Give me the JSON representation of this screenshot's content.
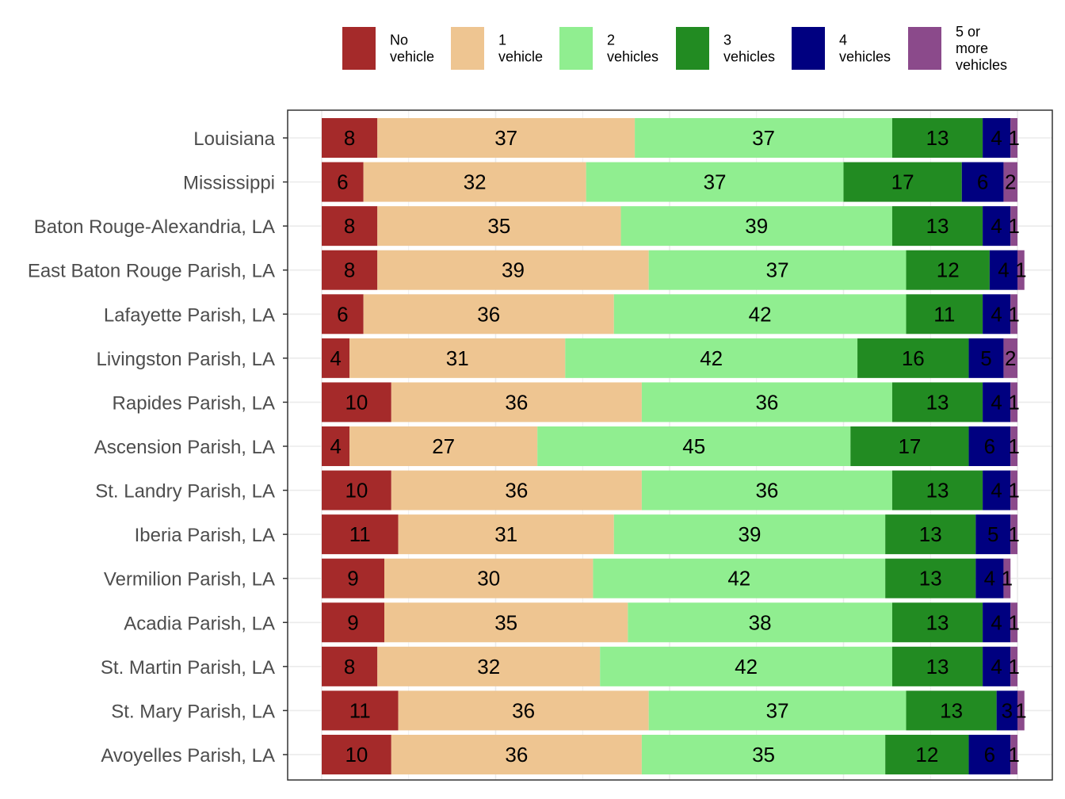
{
  "chart_data": {
    "type": "bar",
    "orientation": "horizontal",
    "stacked": true,
    "title": "",
    "xlabel": "",
    "ylabel": "",
    "xlim": [
      0,
      100
    ],
    "grid": true,
    "legend_position": "top-right",
    "categories": [
      "Louisiana",
      "Mississippi",
      "Baton Rouge-Alexandria, LA",
      "East Baton Rouge Parish, LA",
      "Lafayette Parish, LA",
      "Livingston Parish, LA",
      "Rapides Parish, LA",
      "Ascension Parish, LA",
      "St. Landry Parish, LA",
      "Iberia Parish, LA",
      "Vermilion Parish, LA",
      "Acadia Parish, LA",
      "St. Martin Parish, LA",
      "St. Mary Parish, LA",
      "Avoyelles Parish, LA"
    ],
    "series": [
      {
        "name": "No vehicle",
        "name_lines": [
          "No",
          "vehicle"
        ],
        "color": "#A52A2A",
        "values": [
          8,
          6,
          8,
          8,
          6,
          4,
          10,
          4,
          10,
          11,
          9,
          9,
          8,
          11,
          10
        ]
      },
      {
        "name": "1 vehicle",
        "name_lines": [
          "1",
          "vehicle"
        ],
        "color": "#EEC591",
        "values": [
          37,
          32,
          35,
          39,
          36,
          31,
          36,
          27,
          36,
          31,
          30,
          35,
          32,
          36,
          36
        ]
      },
      {
        "name": "2 vehicles",
        "name_lines": [
          "2",
          "vehicles"
        ],
        "color": "#90EE90",
        "values": [
          37,
          37,
          39,
          37,
          42,
          42,
          36,
          45,
          36,
          39,
          42,
          38,
          42,
          37,
          35
        ]
      },
      {
        "name": "3 vehicles",
        "name_lines": [
          "3",
          "vehicles"
        ],
        "color": "#228B22",
        "values": [
          13,
          17,
          13,
          12,
          11,
          16,
          13,
          17,
          13,
          13,
          13,
          13,
          13,
          13,
          12
        ]
      },
      {
        "name": "4 vehicles",
        "name_lines": [
          "4",
          "vehicles"
        ],
        "color": "#000080",
        "values": [
          4,
          6,
          4,
          4,
          4,
          5,
          4,
          6,
          4,
          5,
          4,
          4,
          4,
          3,
          6
        ]
      },
      {
        "name": "5 or more vehicles",
        "name_lines": [
          "5 or",
          "more",
          "vehicles"
        ],
        "color": "#8B4A8B",
        "values": [
          1,
          2,
          1,
          1,
          1,
          2,
          1,
          1,
          1,
          1,
          1,
          1,
          1,
          1,
          1
        ]
      }
    ]
  }
}
